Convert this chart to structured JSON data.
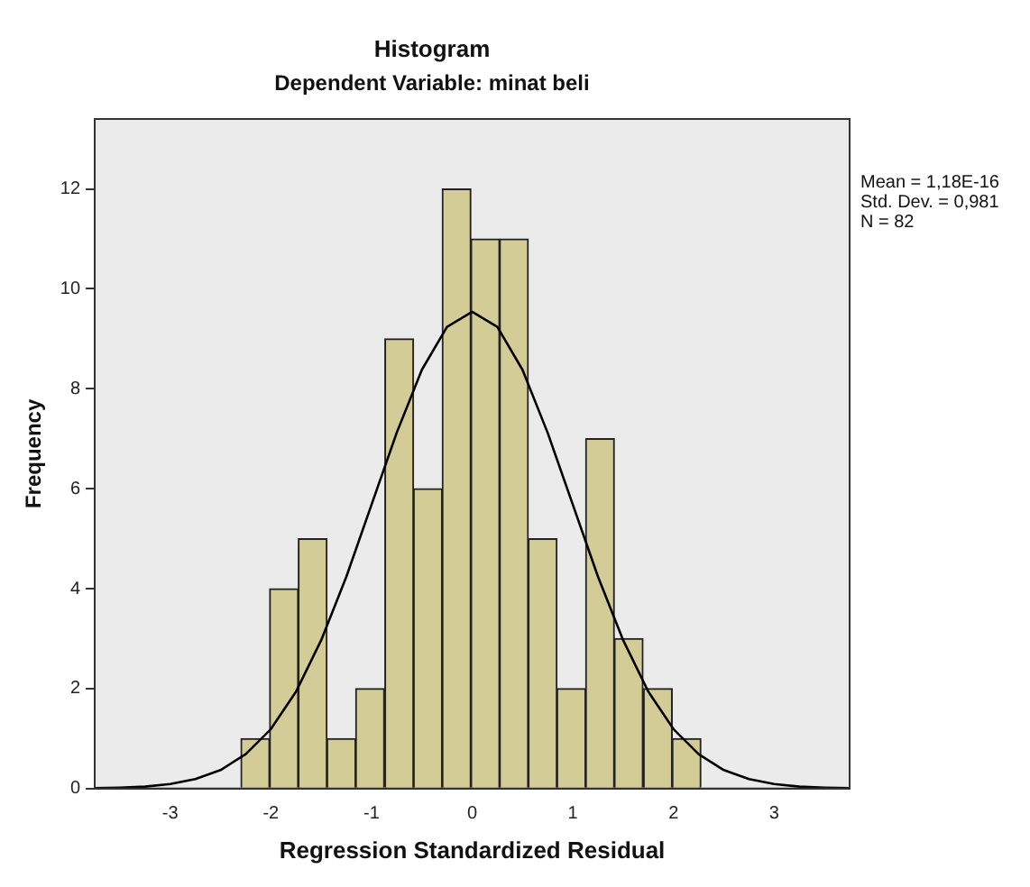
{
  "chart_data": {
    "type": "histogram",
    "title": "Histogram",
    "subtitle": "Dependent Variable: minat beli",
    "xlabel": "Regression Standardized Residual",
    "ylabel": "Frequency",
    "bins": [
      -2.3,
      -2.01,
      -1.73,
      -1.44,
      -1.16,
      -0.87,
      -0.58,
      -0.3,
      -0.01,
      0.27,
      0.56,
      0.84,
      1.13,
      1.41,
      1.7,
      1.99,
      2.27
    ],
    "values": [
      1,
      4,
      5,
      1,
      2,
      9,
      6,
      12,
      11,
      11,
      5,
      2,
      7,
      3,
      2,
      1
    ],
    "color": "#d3cc96",
    "series": [
      {
        "type": "line",
        "color": "#000000",
        "x": [
          -3.75,
          -3.5,
          -3.25,
          -3,
          -2.75,
          -2.5,
          -2.25,
          -2,
          -1.75,
          -1.5,
          -1.25,
          -1,
          -0.75,
          -0.5,
          -0.25,
          0,
          0.25,
          0.5,
          0.75,
          1,
          1.25,
          1.5,
          1.75,
          2,
          2.25,
          2.5,
          2.75,
          3,
          3.25,
          3.5,
          3.75
        ],
        "values": [
          0.01,
          0.02,
          0.04,
          0.09,
          0.19,
          0.37,
          0.69,
          1.19,
          1.94,
          2.97,
          4.24,
          5.68,
          7.12,
          8.38,
          9.24,
          9.54,
          9.24,
          8.38,
          7.12,
          5.68,
          4.24,
          2.97,
          1.94,
          1.19,
          0.69,
          0.37,
          0.19,
          0.09,
          0.04,
          0.02,
          0.01
        ]
      }
    ],
    "xlim": [
      -3.75,
      3.75
    ],
    "xticks": [
      -3,
      -2,
      -1,
      0,
      1,
      2,
      3
    ],
    "ylim": [
      0,
      13.4
    ],
    "yticks": [
      0,
      2,
      4,
      6,
      8,
      10,
      12
    ],
    "annotations": [
      "Mean = 1,18E-16",
      "Std. Dev. = 0,981",
      "N = 82"
    ],
    "grid": false,
    "legend": false
  }
}
